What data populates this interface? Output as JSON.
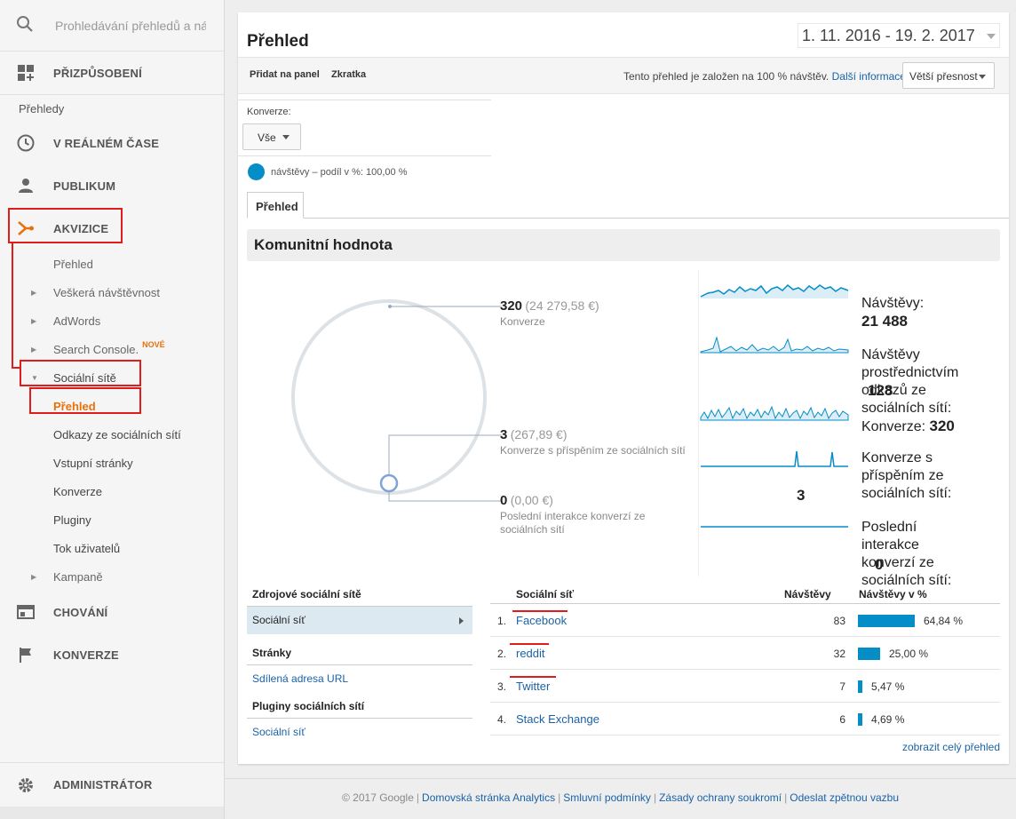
{
  "sidebar": {
    "search_placeholder": "Prohledávání přehledů a ná",
    "customize_label": "PŘIZPŮSOBENÍ",
    "reports_heading": "Přehledy",
    "realtime_label": "V REÁLNÉM ČASE",
    "audience_label": "PUBLIKUM",
    "acquisition_label": "AKVIZICE",
    "acquisition_items": [
      {
        "label": "Přehled"
      },
      {
        "label": "Veškerá návštěvnost"
      },
      {
        "label": "AdWords"
      },
      {
        "label": "Search Console.",
        "badge": "NOVÉ"
      },
      {
        "label": "Sociální sítě"
      }
    ],
    "social_items": [
      {
        "label": "Přehled"
      },
      {
        "label": "Odkazy ze sociálních sítí"
      },
      {
        "label": "Vstupní stránky"
      },
      {
        "label": "Konverze"
      },
      {
        "label": "Pluginy"
      },
      {
        "label": "Tok uživatelů"
      }
    ],
    "campaigns_label": "Kampaně",
    "behavior_label": "CHOVÁNÍ",
    "conversions_label": "KONVERZE",
    "admin_label": "ADMINISTRÁTOR"
  },
  "header": {
    "title": "Přehled",
    "date_range": "1. 11. 2016 - 19. 2. 2017"
  },
  "toolbar": {
    "add_to_dashboard": "Přidat na panel",
    "shortcut": "Zkratka",
    "sampling_info": "Tento přehled je založen na 100 % návštěv.",
    "more_info": "Další informace",
    "precision": "Větší přesnost"
  },
  "conversions_filter": {
    "label": "Konverze:",
    "value": "Vše"
  },
  "segment": {
    "label": "návštěvy – podíl v %: 100,00 %"
  },
  "tab": "Přehled",
  "section_title": "Komunitní hodnota",
  "circle": {
    "conversions": {
      "value": "320",
      "money": "(24 279,58 €)",
      "label": "Konverze"
    },
    "assisted": {
      "value": "3",
      "money": "(267,89 €)",
      "label": "Konverze s příspěním ze sociálních sítí"
    },
    "last_interaction": {
      "value": "0",
      "money": "(0,00 €)",
      "label": "Poslední interakce konverzí ze sociálních sítí"
    }
  },
  "metrics": [
    {
      "label": "Návštěvy:",
      "value": "21 488"
    },
    {
      "label": "Návštěvy prostřednictvím odkazů ze sociálních sítí:",
      "value": "128"
    },
    {
      "label": "Konverze:",
      "value": "320"
    },
    {
      "label": "Konverze s příspěním ze sociálních sítí:",
      "value": "3"
    },
    {
      "label": "Poslední interakce konverzí ze sociálních sítí:",
      "value": "0"
    }
  ],
  "left_table": {
    "source_heading": "Zdrojové sociální sítě",
    "source_row": "Sociální síť",
    "pages_heading": "Stránky",
    "pages_row": "Sdílená adresa URL",
    "plugins_heading": "Pluginy sociálních sítí",
    "plugins_row": "Sociální síť"
  },
  "right_table": {
    "col_network": "Sociální síť",
    "col_visits": "Návštěvy",
    "col_pct": "Návštěvy v %",
    "rows": [
      {
        "rank": "1.",
        "name": "Facebook",
        "visits": "83",
        "pct": "64,84 %",
        "share": 64.84
      },
      {
        "rank": "2.",
        "name": "reddit",
        "visits": "32",
        "pct": "25,00 %",
        "share": 25.0
      },
      {
        "rank": "3.",
        "name": "Twitter",
        "visits": "7",
        "pct": "5,47 %",
        "share": 5.47
      },
      {
        "rank": "4.",
        "name": "Stack Exchange",
        "visits": "6",
        "pct": "4,69 %",
        "share": 4.69
      }
    ],
    "full_report": "zobrazit celý přehled"
  },
  "footer": {
    "copyright": "© 2017 Google",
    "links": [
      "Domovská stránka Analytics",
      "Smluvní podmínky",
      "Zásady ochrany soukromí",
      "Odeslat zpětnou vazbu"
    ]
  },
  "colors": {
    "accent": "#058dc7",
    "highlight": "#e21b1b",
    "active": "#e8710a",
    "link": "#1a62a8"
  }
}
